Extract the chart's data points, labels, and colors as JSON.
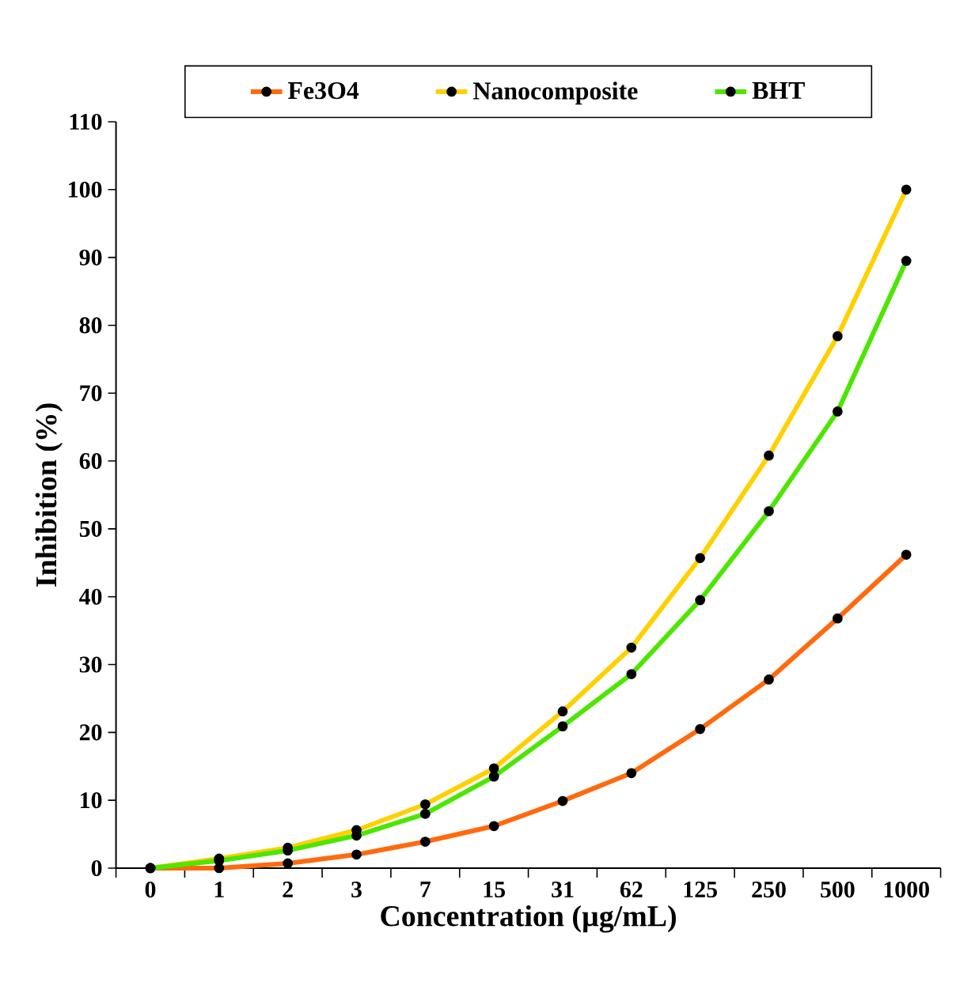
{
  "chart_data": {
    "type": "line",
    "xlabel": "Concentration (µg/mL)",
    "ylabel": "Inhibition (%)",
    "categories": [
      "0",
      "1",
      "2",
      "3",
      "7",
      "15",
      "31",
      "62",
      "125",
      "250",
      "500",
      "1000"
    ],
    "series": [
      {
        "name": "Fe3O4",
        "color": "#ff6a0e",
        "values": [
          0,
          0,
          0.7,
          2.0,
          3.9,
          6.2,
          9.9,
          14.0,
          20.5,
          27.8,
          36.8,
          46.2
        ]
      },
      {
        "name": "Nanocomposite",
        "color": "#ffd000",
        "values": [
          0,
          1.4,
          3.0,
          5.6,
          9.4,
          14.7,
          23.1,
          32.5,
          45.7,
          60.8,
          78.4,
          100.0
        ]
      },
      {
        "name": "BHT",
        "color": "#4ce600",
        "values": [
          0,
          1.1,
          2.6,
          4.8,
          8.0,
          13.5,
          20.9,
          28.6,
          39.5,
          52.6,
          67.3,
          89.5
        ]
      }
    ],
    "ylim": [
      0,
      110
    ],
    "yticks": [
      0,
      10,
      20,
      30,
      40,
      50,
      60,
      70,
      80,
      90,
      100,
      110
    ],
    "grid": false,
    "legend": "top",
    "marker": "circle",
    "line_style": "solid"
  }
}
